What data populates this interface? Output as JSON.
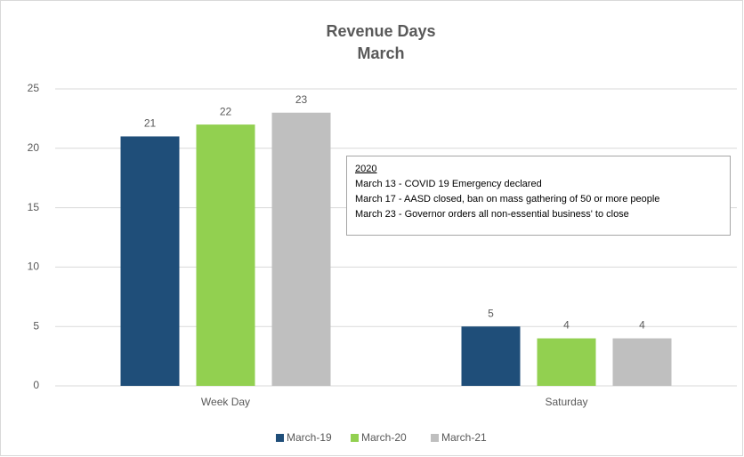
{
  "chart_data": {
    "type": "bar",
    "title": "Revenue Days",
    "subtitle": "March",
    "categories": [
      "Week Day",
      "Saturday"
    ],
    "series": [
      {
        "name": "March-19",
        "color": "#1f4e79",
        "values": [
          21,
          5
        ]
      },
      {
        "name": "March-20",
        "color": "#92d050",
        "values": [
          22,
          4
        ]
      },
      {
        "name": "March-21",
        "color": "#bfbfbf",
        "values": [
          23,
          4
        ]
      }
    ],
    "ylim": [
      0,
      25
    ],
    "yticks": [
      0,
      5,
      10,
      15,
      20,
      25
    ],
    "grid": true,
    "legend": "bottom",
    "annotation": {
      "heading": "2020",
      "lines": [
        "March 13 - COVID 19 Emergency declared",
        "March 17 - AASD closed, ban on mass gathering of 50 or more people",
        "March 23 - Governor orders all non-essential business' to close"
      ]
    }
  }
}
